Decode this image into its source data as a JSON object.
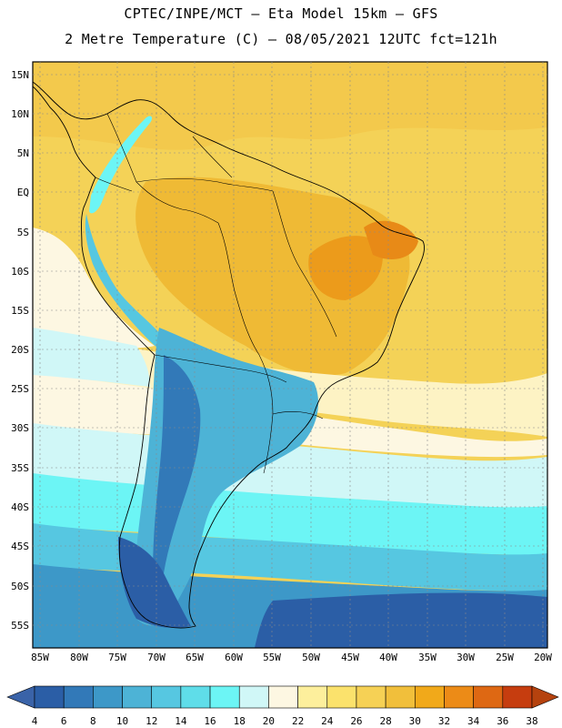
{
  "header": {
    "line1": "CPTEC/INPE/MCT –  Eta Model 15km – GFS",
    "line2": "2 Metre Temperature (C) – 08/05/2021 12UTC fct=121h"
  },
  "map": {
    "lat_labels": [
      "15N",
      "10N",
      "5N",
      "EQ",
      "5S",
      "10S",
      "15S",
      "20S",
      "25S",
      "30S",
      "35S",
      "40S",
      "45S",
      "50S",
      "55S"
    ],
    "lon_labels": [
      "85W",
      "80W",
      "75W",
      "70W",
      "65W",
      "60W",
      "55W",
      "50W",
      "45W",
      "40W",
      "35W",
      "30W",
      "25W",
      "20W"
    ]
  },
  "colorbar": {
    "ticks": [
      "4",
      "6",
      "8",
      "10",
      "12",
      "14",
      "16",
      "18",
      "20",
      "22",
      "24",
      "26",
      "28",
      "30",
      "32",
      "34",
      "36",
      "38"
    ],
    "low_color": "#3a63a8",
    "high_color": "#b5420e",
    "colors": [
      "#2b5ea6",
      "#3279b8",
      "#3d98c8",
      "#4db3d6",
      "#56c7e1",
      "#5fdde9",
      "#6cf5f5",
      "#d0f7f7",
      "#fdf7e2",
      "#fdef9c",
      "#fbe26c",
      "#f6d155",
      "#f1bf3b",
      "#f1a91a",
      "#ec8b17",
      "#de6813",
      "#c63d0f"
    ]
  }
}
